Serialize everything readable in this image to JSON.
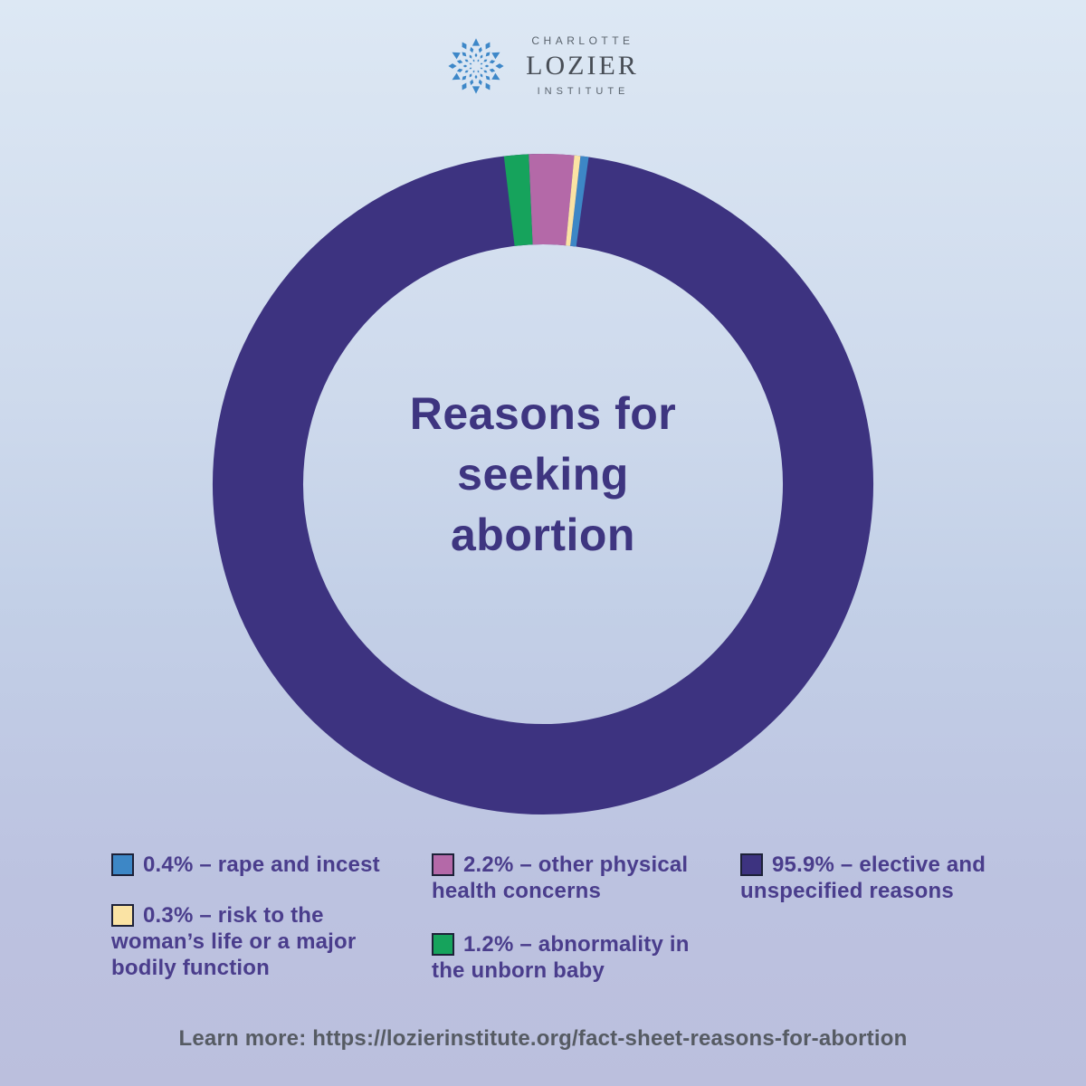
{
  "brand": {
    "top": "CHARLOTTE",
    "name": "LOZIER",
    "bottom": "INSTITUTE",
    "mark_color": "#3d87c8"
  },
  "chart_data": {
    "type": "pie",
    "subtype": "donut",
    "title": "Reasons for seeking abortion",
    "start_angle_deg": -6.8,
    "legend_position": "bottom",
    "series": [
      {
        "name": "abnormality-unborn-baby",
        "label": "abnormality in the unborn baby",
        "value": 1.2,
        "color": "#16a35c"
      },
      {
        "name": "other-physical-health-concerns",
        "label": "other physical health concerns",
        "value": 2.2,
        "color": "#b469a8"
      },
      {
        "name": "risk-to-womans-life",
        "label": "risk to the woman’s life or a major bodily function",
        "value": 0.3,
        "color": "#fae3a4"
      },
      {
        "name": "rape-and-incest",
        "label": "rape and incest",
        "value": 0.4,
        "color": "#3d87c6"
      },
      {
        "name": "elective-unspecified",
        "label": "elective and unspecified reasons",
        "value": 95.9,
        "color": "#3d3380"
      }
    ]
  },
  "legend": {
    "items": [
      {
        "text": "0.4% – rape and incest",
        "color": "#3d87c6"
      },
      {
        "text": "0.3% – risk to the woman’s life or a major bodily function",
        "color": "#fae3a4"
      },
      {
        "text": "2.2% – other physical health concerns",
        "color": "#b469a8"
      },
      {
        "text": "1.2% – abnormality in the unborn baby",
        "color": "#16a35c"
      },
      {
        "text": "95.9% – elective and unspecified reasons",
        "color": "#3d3380"
      }
    ]
  },
  "footer": {
    "label": "Learn more:",
    "url": "https://lozierinstitute.org/fact-sheet-reasons-for-abortion"
  }
}
